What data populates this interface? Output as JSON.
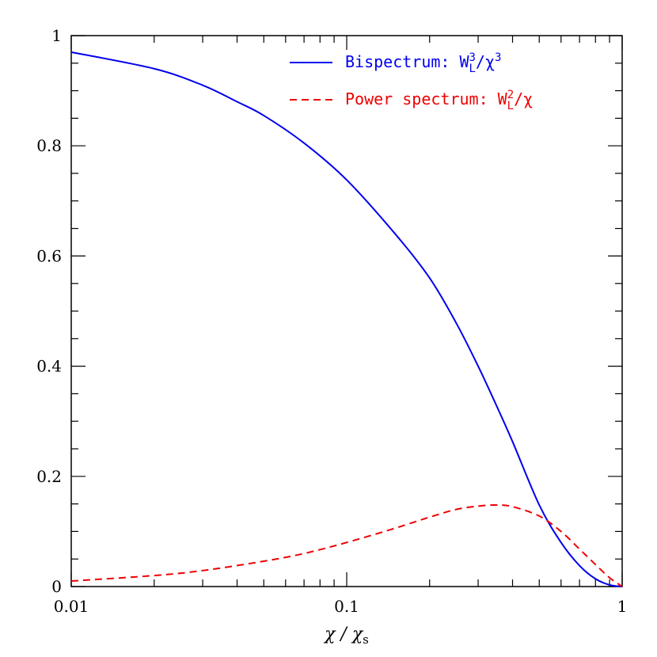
{
  "chart_data": {
    "type": "line",
    "xscale": "log",
    "xlim": [
      0.01,
      1
    ],
    "ylim": [
      0,
      1
    ],
    "xlabel_parts": {
      "main": "χ / χ",
      "sub": "s"
    },
    "x_ticks": [
      {
        "value": 0.01,
        "label": "0.01"
      },
      {
        "value": 0.1,
        "label": "0.1"
      },
      {
        "value": 1,
        "label": "1"
      }
    ],
    "y_ticks": [
      {
        "value": 0,
        "label": "0"
      },
      {
        "value": 0.2,
        "label": "0.2"
      },
      {
        "value": 0.4,
        "label": "0.4"
      },
      {
        "value": 0.6,
        "label": "0.6"
      },
      {
        "value": 0.8,
        "label": "0.8"
      },
      {
        "value": 1,
        "label": "1"
      }
    ],
    "grid": false,
    "legend_position": "top-right",
    "series": [
      {
        "legend_parts": {
          "text": "Bispectrum: ",
          "base": "W",
          "sup": "3",
          "sub": "L",
          "tail": "/χ",
          "tail_sup": "3"
        },
        "color": "#0000ee",
        "style": "solid",
        "points": [
          [
            0.01,
            0.97
          ],
          [
            0.02,
            0.94
          ],
          [
            0.03,
            0.91
          ],
          [
            0.04,
            0.88
          ],
          [
            0.05,
            0.855
          ],
          [
            0.07,
            0.805
          ],
          [
            0.1,
            0.738
          ],
          [
            0.15,
            0.64
          ],
          [
            0.2,
            0.56
          ],
          [
            0.25,
            0.478
          ],
          [
            0.3,
            0.4
          ],
          [
            0.35,
            0.328
          ],
          [
            0.4,
            0.263
          ],
          [
            0.5,
            0.148
          ],
          [
            0.6,
            0.08
          ],
          [
            0.7,
            0.038
          ],
          [
            0.8,
            0.014
          ],
          [
            0.9,
            0.003
          ],
          [
            1.0,
            0.0
          ]
        ]
      },
      {
        "legend_parts": {
          "text": "Power spectrum: ",
          "base": "W",
          "sup": "2",
          "sub": "L",
          "tail": "/χ",
          "tail_sup": ""
        },
        "color": "#ee0000",
        "style": "dashed",
        "points": [
          [
            0.01,
            0.01
          ],
          [
            0.02,
            0.02
          ],
          [
            0.03,
            0.029
          ],
          [
            0.05,
            0.046
          ],
          [
            0.07,
            0.06
          ],
          [
            0.1,
            0.08
          ],
          [
            0.15,
            0.106
          ],
          [
            0.2,
            0.126
          ],
          [
            0.25,
            0.14
          ],
          [
            0.3,
            0.146
          ],
          [
            0.35,
            0.148
          ],
          [
            0.4,
            0.145
          ],
          [
            0.5,
            0.128
          ],
          [
            0.6,
            0.1
          ],
          [
            0.7,
            0.068
          ],
          [
            0.8,
            0.04
          ],
          [
            0.9,
            0.016
          ],
          [
            1.0,
            0.0
          ]
        ]
      }
    ]
  }
}
